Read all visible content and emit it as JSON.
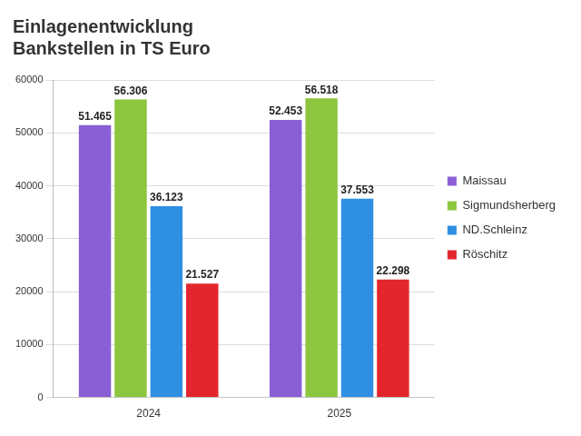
{
  "chart_data": {
    "type": "bar",
    "title": "Einlagenentwicklung\nBankstellen in TS Euro",
    "categories": [
      "2024",
      "2025"
    ],
    "series": [
      {
        "name": "Maissau",
        "color": "#8a5fd6",
        "values": [
          51465,
          52453
        ],
        "value_labels": [
          "51.465",
          "52.453"
        ]
      },
      {
        "name": "Sigmundsherberg",
        "color": "#8cc63e",
        "values": [
          56306,
          56518
        ],
        "value_labels": [
          "56.306",
          "56.518"
        ]
      },
      {
        "name": "ND.Schleinz",
        "color": "#2e8fe3",
        "values": [
          36123,
          37553
        ],
        "value_labels": [
          "36.123",
          "37.553"
        ]
      },
      {
        "name": "Röschitz",
        "color": "#e3262d",
        "values": [
          21527,
          22298
        ],
        "value_labels": [
          "21.527",
          "22.298"
        ]
      }
    ],
    "ylim": [
      0,
      60000
    ],
    "yticks": [
      0,
      10000,
      20000,
      30000,
      40000,
      50000,
      60000
    ],
    "grid": true,
    "legend": "right",
    "data_labels": true
  }
}
